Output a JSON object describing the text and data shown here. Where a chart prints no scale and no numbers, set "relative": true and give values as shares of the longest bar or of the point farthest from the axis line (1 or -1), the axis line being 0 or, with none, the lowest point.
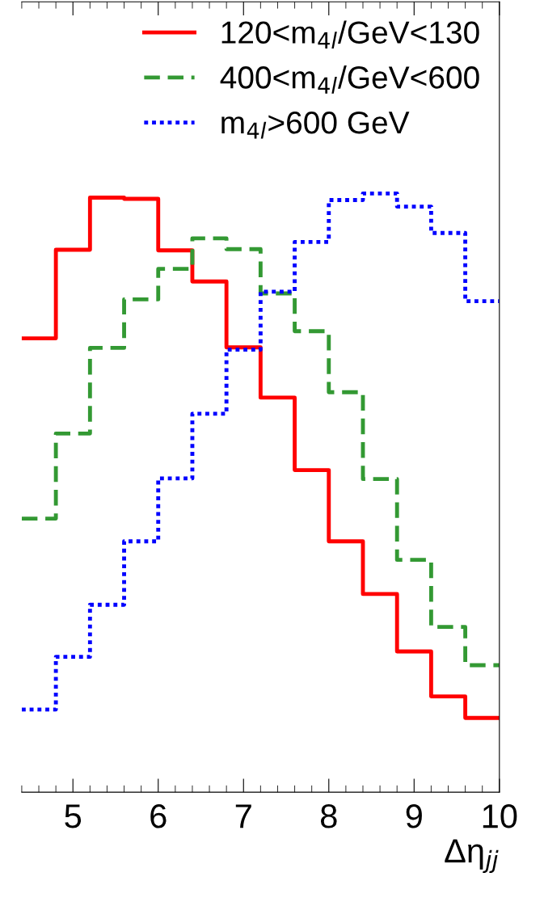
{
  "chart_data": {
    "type": "step",
    "relative": true,
    "xlabel": "Δη$_{jj}$",
    "xlim": [
      4.4,
      10
    ],
    "xticks": [
      5,
      6,
      7,
      8,
      9,
      10
    ],
    "legend": "top right",
    "grid": false,
    "x": [
      4.4,
      4.8,
      5.2,
      5.6,
      6.0,
      6.4,
      6.8,
      7.2,
      7.6,
      8.0,
      8.4,
      8.8,
      9.2,
      9.6,
      10.0
    ],
    "series": [
      {
        "name": "120<m$_{4l}$/GeV<130",
        "color": "#ff0000",
        "line_style": "solid",
        "values": [
          0.758,
          0.906,
          0.993,
          0.991,
          0.905,
          0.853,
          0.743,
          0.659,
          0.538,
          0.419,
          0.331,
          0.235,
          0.16,
          0.124,
          0.124
        ]
      },
      {
        "name": "400<m$_{4l}$/GeV<600",
        "color": "#339933",
        "line_style": "dashed",
        "values": [
          0.457,
          0.599,
          0.742,
          0.823,
          0.874,
          0.925,
          0.907,
          0.833,
          0.77,
          0.668,
          0.523,
          0.388,
          0.276,
          0.212,
          0.212
        ]
      },
      {
        "name": "m$_{4l}$>600 GeV",
        "color": "#0000ff",
        "line_style": "dotted",
        "values": [
          0.138,
          0.226,
          0.313,
          0.419,
          0.524,
          0.632,
          0.739,
          0.836,
          0.919,
          0.989,
          1.0,
          0.978,
          0.934,
          0.82,
          0.82
        ]
      }
    ]
  }
}
